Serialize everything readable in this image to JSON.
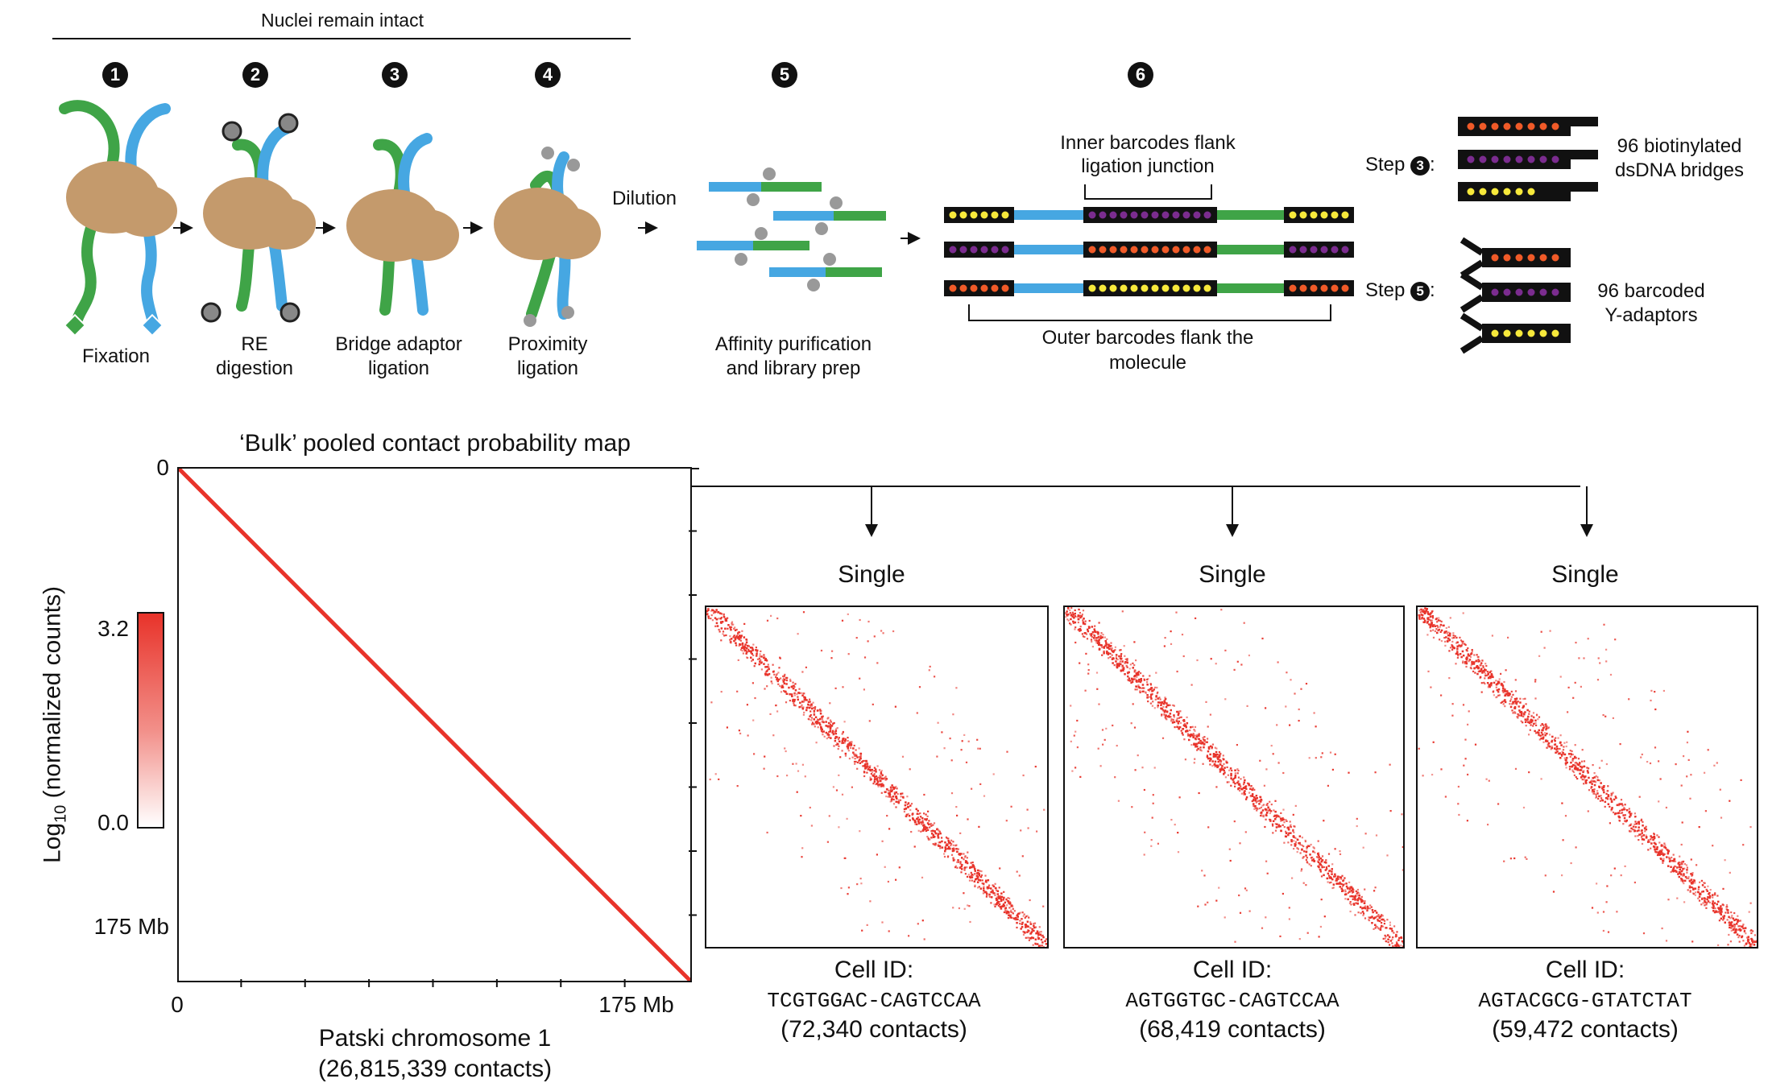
{
  "top_label": "Nuclei remain intact",
  "steps": [
    {
      "num": "1",
      "label_line1": "Fixation",
      "label_line2": ""
    },
    {
      "num": "2",
      "label_line1": "RE",
      "label_line2": "digestion"
    },
    {
      "num": "3",
      "label_line1": "Bridge adaptor",
      "label_line2": "ligation"
    },
    {
      "num": "4",
      "label_line1": "Proximity",
      "label_line2": "ligation"
    },
    {
      "num": "5",
      "label_line1": "Affinity purification",
      "label_line2": "and library prep"
    },
    {
      "num": "6"
    }
  ],
  "dilution_label": "Dilution",
  "inner_barcodes_line1": "Inner barcodes flank",
  "inner_barcodes_line2": "ligation junction",
  "outer_barcodes_line1": "Outer barcodes flank the",
  "outer_barcodes_line2": "molecule",
  "legend": {
    "step_word": "Step",
    "step3_num": "3",
    "step5_num": "5",
    "bridges_line1": "96 biotinylated",
    "bridges_line2": "dsDNA bridges",
    "adaptors_line1": "96 barcoded",
    "adaptors_line2": "Y-adaptors"
  },
  "colors": {
    "green": "#3fa447",
    "blue": "#46a7e2",
    "protein": "#c49a6c",
    "orange": "#f05a28",
    "purple": "#7b2c8f",
    "yellow": "#f7e93b",
    "map_red": "#e8332a"
  },
  "bulk": {
    "title": "‘Bulk’ pooled contact probability map",
    "y_tick_top": "0",
    "y_tick_bottom": "175 Mb",
    "x_tick_left": "0",
    "x_tick_right": "175 Mb",
    "xlabel_line1": "Patski chromosome 1",
    "xlabel_line2": "(26,815,339 contacts)",
    "colorbar_max": "3.2",
    "colorbar_min": "0.0",
    "ylabel_prefix": "Log",
    "ylabel_sub": "10",
    "ylabel_suffix": " (normalized counts)"
  },
  "singles": [
    {
      "title": "Single",
      "id_label": "Cell ID:",
      "cell_id": "TCGTGGAC-CAGTCCAA",
      "contacts": "(72,340 contacts)"
    },
    {
      "title": "Single",
      "id_label": "Cell ID:",
      "cell_id": "AGTGGTGC-CAGTCCAA",
      "contacts": "(68,419 contacts)"
    },
    {
      "title": "Single",
      "id_label": "Cell ID:",
      "cell_id": "AGTACGCG-GTATCTAT",
      "contacts": "(59,472 contacts)"
    }
  ]
}
